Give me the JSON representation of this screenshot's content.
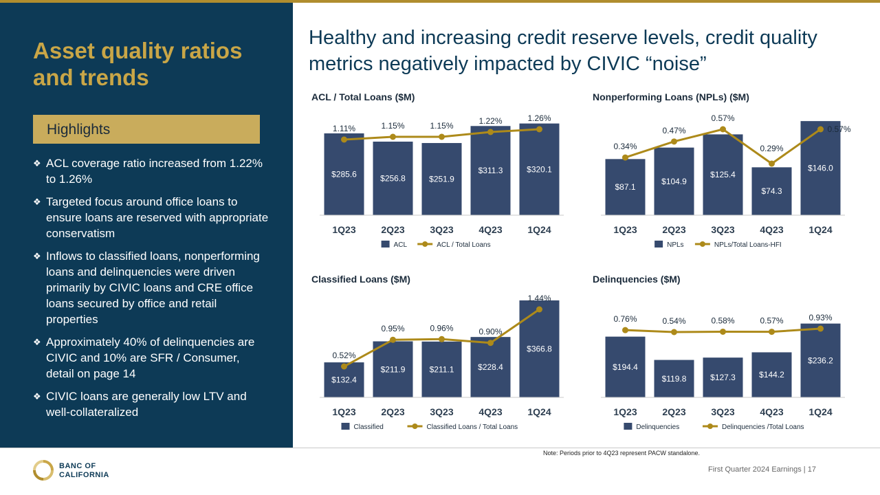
{
  "left": {
    "title": "Asset quality ratios and trends",
    "highlights_label": "Highlights",
    "bullets": [
      "ACL coverage ratio increased from 1.22% to 1.26%",
      "Targeted focus around office loans to ensure loans are reserved with appropriate conservatism",
      "Inflows to classified loans, nonperforming loans and delinquencies were driven primarily by CIVIC loans and CRE office loans secured by office and retail properties",
      "Approximately 40% of delinquencies are CIVIC and 10% are SFR / Consumer, detail on page 14",
      "CIVIC loans are generally low LTV and well-collateralized"
    ]
  },
  "headline": "Healthy and increasing credit reserve levels, credit quality metrics negatively impacted by CIVIC “noise”",
  "colors": {
    "navy": "#364a6e",
    "gold": "#ad8a1a",
    "panel": "#0d3a56",
    "accent": "#c9a647"
  },
  "chart_data": [
    {
      "type": "bar",
      "title": "ACL / Total Loans ($M)",
      "categories": [
        "1Q23",
        "2Q23",
        "3Q23",
        "4Q23",
        "1Q24"
      ],
      "series": [
        {
          "name": "ACL",
          "values": [
            285.6,
            256.8,
            251.9,
            311.3,
            320.1
          ],
          "labels": [
            "$285.6",
            "$256.8",
            "$251.9",
            "$311.3",
            "$320.1"
          ]
        },
        {
          "name": "ACL / Total Loans",
          "values": [
            1.11,
            1.15,
            1.15,
            1.22,
            1.26
          ],
          "labels": [
            "1.11%",
            "1.15%",
            "1.15%",
            "1.22%",
            "1.26%"
          ]
        }
      ]
    },
    {
      "type": "bar",
      "title": "Nonperforming Loans (NPLs) ($M)",
      "categories": [
        "1Q23",
        "2Q23",
        "3Q23",
        "4Q23",
        "1Q24"
      ],
      "series": [
        {
          "name": "NPLs",
          "values": [
            87.1,
            104.9,
            125.4,
            74.3,
            146.0
          ],
          "labels": [
            "$87.1",
            "$104.9",
            "$125.4",
            "$74.3",
            "$146.0"
          ]
        },
        {
          "name": "NPLs/Total Loans-HFI",
          "values": [
            0.34,
            0.47,
            0.57,
            0.29,
            0.57
          ],
          "labels": [
            "0.34%",
            "0.47%",
            "0.57%",
            "0.29%",
            "0.57%"
          ]
        }
      ]
    },
    {
      "type": "bar",
      "title": "Classified Loans ($M)",
      "categories": [
        "1Q23",
        "2Q23",
        "3Q23",
        "4Q23",
        "1Q24"
      ],
      "series": [
        {
          "name": "Classified",
          "values": [
            132.4,
            211.9,
            211.1,
            228.4,
            366.8
          ],
          "labels": [
            "$132.4",
            "$211.9",
            "$211.1",
            "$228.4",
            "$366.8"
          ]
        },
        {
          "name": "Classified Loans / Total Loans",
          "values": [
            0.52,
            0.95,
            0.96,
            0.9,
            1.44
          ],
          "labels": [
            "0.52%",
            "0.95%",
            "0.96%",
            "0.90%",
            "1.44%"
          ]
        }
      ]
    },
    {
      "type": "bar",
      "title": "Delinquencies ($M)",
      "categories": [
        "1Q23",
        "2Q23",
        "3Q23",
        "4Q23",
        "1Q24"
      ],
      "series": [
        {
          "name": "Delinquencies",
          "values": [
            194.4,
            119.8,
            127.3,
            144.2,
            236.2
          ],
          "labels": [
            "$194.4",
            "$119.8",
            "$127.3",
            "$144.2",
            "$236.2"
          ]
        },
        {
          "name": "Delinquencies /Total Loans",
          "values": [
            0.76,
            0.54,
            0.58,
            0.57,
            0.93
          ],
          "labels": [
            "0.76%",
            "0.54%",
            "0.58%",
            "0.57%",
            "0.93%"
          ]
        }
      ]
    }
  ],
  "note": "Note: Periods prior to 4Q23 represent PACW standalone.",
  "logo_text": "BANC OF CALIFORNIA",
  "footer": "First Quarter 2024 Earnings | 17"
}
